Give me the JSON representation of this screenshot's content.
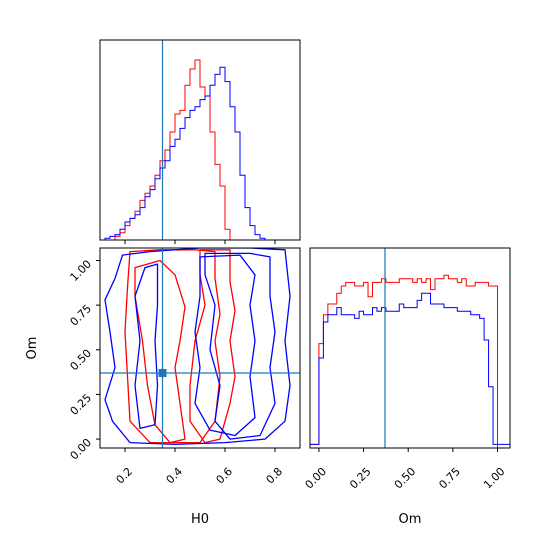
{
  "colors": {
    "red": "#ff0000",
    "blue": "#0000ff",
    "truth": "#1f77b4"
  },
  "chart_data": {
    "type": "corner",
    "parameters": [
      "H0",
      "Om"
    ],
    "truth": {
      "H0": 0.35,
      "Om": 0.37
    },
    "axes": {
      "H0": {
        "label": "H0",
        "range": [
          0.1,
          0.9
        ],
        "ticks": [
          0.2,
          0.4,
          0.6,
          0.8
        ],
        "tick_labels": [
          "0.2",
          "0.4",
          "0.6",
          "0.8"
        ]
      },
      "Om": {
        "label": "Om",
        "range": [
          -0.05,
          1.07
        ],
        "ticks": [
          0.0,
          0.25,
          0.5,
          0.75,
          1.0
        ],
        "tick_labels": [
          "0.00",
          "0.25",
          "0.50",
          "0.75",
          "1.00"
        ]
      }
    },
    "histograms": {
      "H0": {
        "bins": [
          0.12,
          0.14,
          0.16,
          0.18,
          0.2,
          0.22,
          0.24,
          0.26,
          0.28,
          0.3,
          0.32,
          0.34,
          0.36,
          0.38,
          0.4,
          0.42,
          0.44,
          0.46,
          0.48,
          0.5,
          0.52,
          0.54,
          0.56,
          0.58,
          0.6,
          0.62,
          0.64,
          0.66,
          0.68,
          0.7,
          0.72,
          0.74,
          0.76,
          0.78,
          0.8,
          0.82,
          0.84,
          0.86
        ],
        "series": [
          {
            "color": "red",
            "values": [
              0,
              0,
              0.02,
              0.04,
              0.08,
              0.12,
              0.16,
              0.22,
              0.26,
              0.3,
              0.36,
              0.44,
              0.5,
              0.6,
              0.7,
              0.72,
              0.86,
              0.95,
              1.0,
              0.85,
              0.8,
              0.6,
              0.42,
              0.3,
              0.06,
              0,
              0,
              0,
              0,
              0,
              0,
              0,
              0,
              0,
              0,
              0,
              0
            ]
          },
          {
            "color": "blue",
            "values": [
              0.01,
              0.02,
              0.03,
              0.06,
              0.1,
              0.12,
              0.14,
              0.18,
              0.24,
              0.28,
              0.34,
              0.4,
              0.44,
              0.52,
              0.56,
              0.62,
              0.68,
              0.72,
              0.74,
              0.78,
              0.8,
              0.86,
              0.92,
              0.96,
              0.88,
              0.74,
              0.6,
              0.36,
              0.18,
              0.08,
              0.03,
              0.01,
              0,
              0,
              0,
              0,
              0
            ]
          }
        ]
      },
      "Om": {
        "bins": [
          -0.05,
          0.0,
          0.025,
          0.05,
          0.075,
          0.1,
          0.125,
          0.15,
          0.175,
          0.2,
          0.225,
          0.25,
          0.275,
          0.3,
          0.325,
          0.35,
          0.375,
          0.4,
          0.425,
          0.45,
          0.475,
          0.5,
          0.525,
          0.55,
          0.575,
          0.6,
          0.625,
          0.65,
          0.675,
          0.7,
          0.725,
          0.75,
          0.775,
          0.8,
          0.825,
          0.85,
          0.875,
          0.9,
          0.925,
          0.95,
          0.975,
          1.0,
          1.07
        ],
        "series": [
          {
            "color": "red",
            "values": [
              0.02,
              0.58,
              0.74,
              0.8,
              0.8,
              0.86,
              0.9,
              0.92,
              0.92,
              0.9,
              0.9,
              0.92,
              0.84,
              0.92,
              0.92,
              0.94,
              0.92,
              0.92,
              0.92,
              0.94,
              0.94,
              0.94,
              0.92,
              0.94,
              0.92,
              0.94,
              0.88,
              0.94,
              0.94,
              0.96,
              0.94,
              0.94,
              0.92,
              0.94,
              0.9,
              0.9,
              0.92,
              0.92,
              0.92,
              0.9,
              0.9,
              0
            ]
          },
          {
            "color": "blue",
            "values": [
              0.02,
              0.5,
              0.7,
              0.74,
              0.74,
              0.78,
              0.74,
              0.74,
              0.74,
              0.72,
              0.76,
              0.74,
              0.74,
              0.78,
              0.76,
              0.78,
              0.76,
              0.76,
              0.76,
              0.8,
              0.78,
              0.78,
              0.78,
              0.82,
              0.86,
              0.86,
              0.8,
              0.8,
              0.8,
              0.78,
              0.78,
              0.78,
              0.76,
              0.76,
              0.76,
              0.74,
              0.74,
              0.72,
              0.6,
              0.34,
              0.02,
              0.02
            ]
          }
        ]
      }
    },
    "contours_2d": [
      {
        "color": "red",
        "level": "inner",
        "points": [
          [
            0.24,
            0.96
          ],
          [
            0.34,
            1.0
          ],
          [
            0.4,
            0.92
          ],
          [
            0.44,
            0.74
          ],
          [
            0.42,
            0.55
          ],
          [
            0.4,
            0.4
          ],
          [
            0.42,
            0.2
          ],
          [
            0.44,
            0.0
          ],
          [
            0.38,
            -0.02
          ],
          [
            0.32,
            0.08
          ],
          [
            0.29,
            0.3
          ],
          [
            0.27,
            0.55
          ],
          [
            0.24,
            0.8
          ]
        ]
      },
      {
        "color": "red",
        "level": "outer",
        "points": [
          [
            0.5,
            1.06
          ],
          [
            0.62,
            1.06
          ],
          [
            0.62,
            0.88
          ],
          [
            0.64,
            0.72
          ],
          [
            0.62,
            0.55
          ],
          [
            0.64,
            0.35
          ],
          [
            0.62,
            0.2
          ],
          [
            0.58,
            0.0
          ],
          [
            0.52,
            -0.02
          ],
          [
            0.46,
            0.1
          ],
          [
            0.46,
            0.3
          ],
          [
            0.48,
            0.55
          ],
          [
            0.52,
            0.75
          ],
          [
            0.5,
            0.92
          ]
        ]
      },
      {
        "color": "red",
        "level": "mid",
        "points": [
          [
            0.22,
            1.05
          ],
          [
            0.34,
            1.06
          ],
          [
            0.48,
            1.06
          ],
          [
            0.56,
            1.05
          ],
          [
            0.56,
            0.9
          ],
          [
            0.58,
            0.7
          ],
          [
            0.56,
            0.55
          ],
          [
            0.58,
            0.35
          ],
          [
            0.56,
            0.1
          ],
          [
            0.5,
            -0.02
          ],
          [
            0.3,
            -0.02
          ],
          [
            0.22,
            0.1
          ],
          [
            0.21,
            0.35
          ],
          [
            0.2,
            0.6
          ],
          [
            0.21,
            0.85
          ]
        ]
      },
      {
        "color": "blue",
        "level": "inner",
        "points": [
          [
            0.52,
            1.04
          ],
          [
            0.7,
            1.04
          ],
          [
            0.78,
            1.02
          ],
          [
            0.78,
            0.8
          ],
          [
            0.8,
            0.6
          ],
          [
            0.78,
            0.4
          ],
          [
            0.8,
            0.2
          ],
          [
            0.74,
            0.02
          ],
          [
            0.62,
            0.0
          ],
          [
            0.56,
            0.1
          ],
          [
            0.58,
            0.3
          ],
          [
            0.54,
            0.5
          ],
          [
            0.56,
            0.75
          ],
          [
            0.52,
            0.92
          ]
        ]
      },
      {
        "color": "blue",
        "level": "outer",
        "points": [
          [
            0.19,
            1.03
          ],
          [
            0.3,
            1.05
          ],
          [
            0.5,
            1.07
          ],
          [
            0.7,
            1.07
          ],
          [
            0.84,
            1.06
          ],
          [
            0.86,
            0.8
          ],
          [
            0.84,
            0.55
          ],
          [
            0.86,
            0.3
          ],
          [
            0.84,
            0.1
          ],
          [
            0.76,
            0.0
          ],
          [
            0.6,
            -0.02
          ],
          [
            0.4,
            -0.03
          ],
          [
            0.22,
            -0.02
          ],
          [
            0.15,
            0.1
          ],
          [
            0.12,
            0.22
          ],
          [
            0.16,
            0.4
          ],
          [
            0.14,
            0.6
          ],
          [
            0.12,
            0.78
          ],
          [
            0.16,
            0.9
          ]
        ]
      },
      {
        "color": "blue",
        "level": "left",
        "points": [
          [
            0.28,
            0.96
          ],
          [
            0.33,
            0.98
          ],
          [
            0.33,
            0.75
          ],
          [
            0.32,
            0.55
          ],
          [
            0.33,
            0.3
          ],
          [
            0.32,
            0.08
          ],
          [
            0.26,
            0.06
          ],
          [
            0.24,
            0.3
          ],
          [
            0.26,
            0.55
          ],
          [
            0.24,
            0.8
          ]
        ]
      },
      {
        "color": "blue",
        "level": "mid",
        "points": [
          [
            0.5,
            1.02
          ],
          [
            0.66,
            1.03
          ],
          [
            0.72,
            0.92
          ],
          [
            0.7,
            0.75
          ],
          [
            0.72,
            0.55
          ],
          [
            0.7,
            0.35
          ],
          [
            0.72,
            0.12
          ],
          [
            0.64,
            0.02
          ],
          [
            0.54,
            0.05
          ],
          [
            0.48,
            0.2
          ],
          [
            0.5,
            0.4
          ],
          [
            0.48,
            0.6
          ],
          [
            0.5,
            0.8
          ]
        ]
      }
    ]
  }
}
